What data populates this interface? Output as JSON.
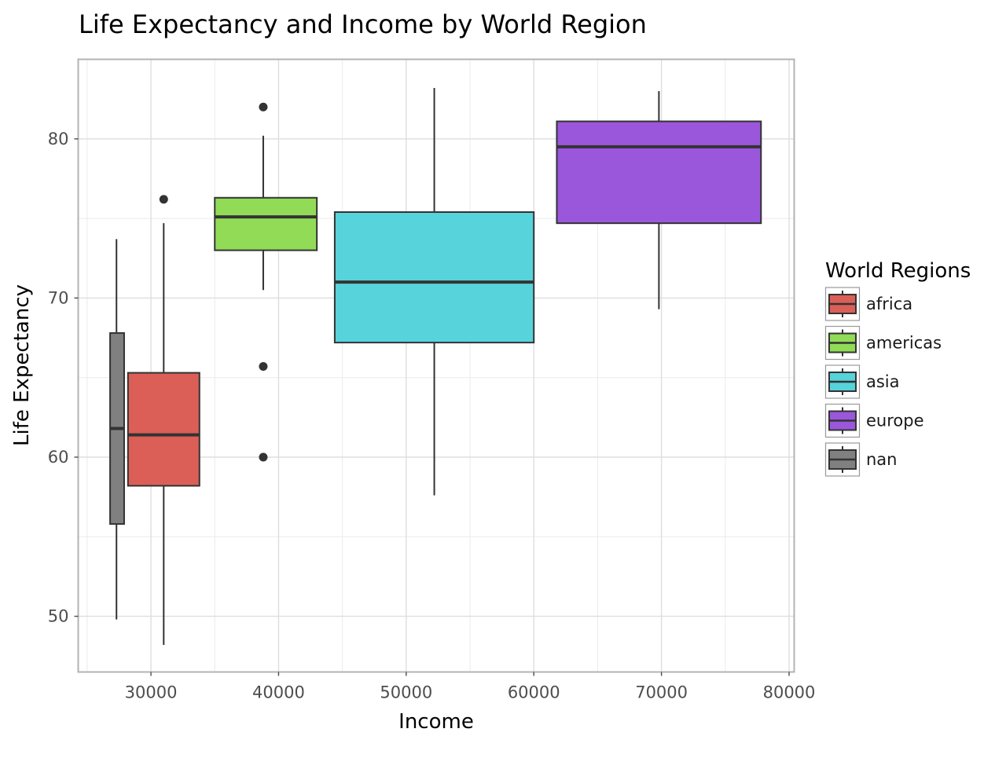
{
  "chart_data": {
    "type": "boxplot",
    "title": "Life Expectancy and Income by World Region",
    "xlabel": "Income",
    "ylabel": "Life Expectancy",
    "xlim": [
      24300,
      80400
    ],
    "ylim": [
      46.5,
      85.0
    ],
    "x_ticks": [
      30000,
      40000,
      50000,
      60000,
      70000,
      80000
    ],
    "y_ticks": [
      50,
      60,
      70,
      80
    ],
    "grid": true,
    "legend": {
      "title": "World Regions",
      "position": "right"
    },
    "series": [
      {
        "name": "africa",
        "color": "#db5f57",
        "x_min": 28200,
        "x_max": 33800,
        "x_center": 31000,
        "whisker_low": 48.2,
        "q1": 58.2,
        "median": 61.4,
        "q3": 65.3,
        "whisker_high": 74.7,
        "outliers": [
          76.2
        ]
      },
      {
        "name": "americas",
        "color": "#91db57",
        "x_min": 35000,
        "x_max": 43000,
        "x_center": 38800,
        "whisker_low": 70.5,
        "q1": 73.0,
        "median": 75.1,
        "q3": 76.3,
        "whisker_high": 80.2,
        "outliers": [
          82.0,
          65.7,
          60.0
        ]
      },
      {
        "name": "asia",
        "color": "#57d3db",
        "x_min": 44400,
        "x_max": 60000,
        "x_center": 52200,
        "whisker_low": 57.6,
        "q1": 67.2,
        "median": 71.0,
        "q3": 75.4,
        "whisker_high": 83.2,
        "outliers": []
      },
      {
        "name": "europe",
        "color": "#9b57db",
        "x_min": 61800,
        "x_max": 77800,
        "x_center": 69800,
        "whisker_low": 69.3,
        "q1": 74.7,
        "median": 79.5,
        "q3": 81.1,
        "whisker_high": 83.0,
        "outliers": []
      },
      {
        "name": "nan",
        "color": "#808080",
        "x_min": 26800,
        "x_max": 27900,
        "x_center": 27300,
        "whisker_low": 49.8,
        "q1": 55.8,
        "median": 61.8,
        "q3": 67.8,
        "whisker_high": 73.7,
        "outliers": []
      }
    ]
  }
}
